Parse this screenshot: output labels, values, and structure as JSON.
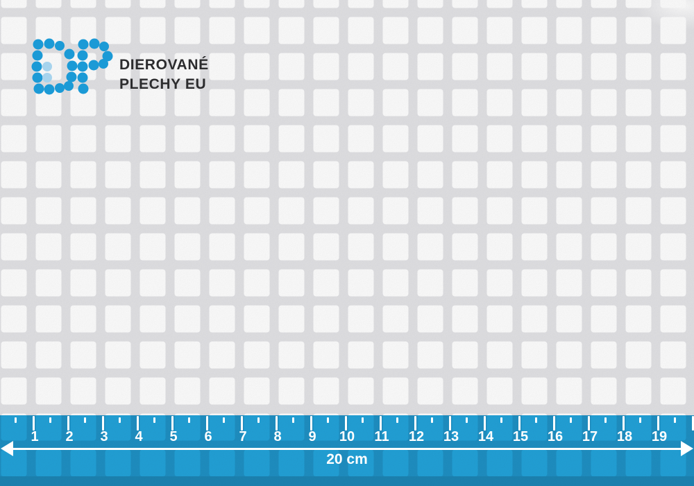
{
  "brand": {
    "name": "DP",
    "line1": "DIEROVANÉ",
    "line2": "PLECHY EU",
    "dot_color": "#1b9ad6",
    "dot_color_light": "#a6d3ed",
    "text_color": "#2c2c2e"
  },
  "sheet": {
    "hole_shape": "square",
    "hole_color": "#ffffff",
    "metal_color": "#e3e3e6",
    "edge_color": "#ced1d4"
  },
  "ruler": {
    "numbers": [
      "1",
      "2",
      "3",
      "4",
      "5",
      "6",
      "7",
      "8",
      "9",
      "10",
      "11",
      "12",
      "13",
      "14",
      "15",
      "16",
      "17",
      "18",
      "19"
    ],
    "total_label": "20 cm",
    "color": "#22a2d9",
    "tick_color": "#ffffff"
  }
}
